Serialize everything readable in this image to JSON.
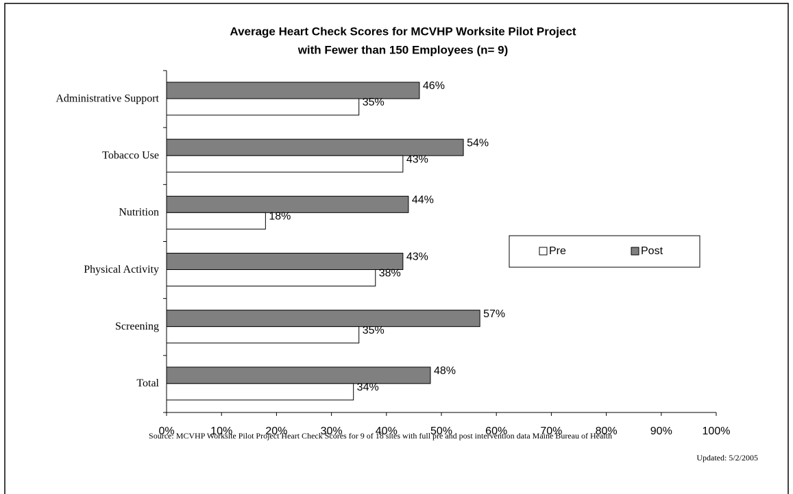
{
  "chart_data": {
    "type": "hbar",
    "title": "Average Heart Check Scores for MCVHP Worksite Pilot Project",
    "subtitle": "with Fewer than 150 Employees (n= 9)",
    "categories": [
      "Administrative Support",
      "Tobacco Use",
      "Nutrition",
      "Physical Activity",
      "Screening",
      "Total"
    ],
    "series": [
      {
        "name": "Pre",
        "color": "#ffffff",
        "values": [
          35,
          43,
          18,
          38,
          35,
          34
        ],
        "value_labels": [
          "35%",
          "43%",
          "18%",
          "38%",
          "35%",
          "34%"
        ]
      },
      {
        "name": "Post",
        "color": "#808080",
        "values": [
          46,
          54,
          44,
          43,
          57,
          48
        ],
        "value_labels": [
          "46%",
          "54%",
          "44%",
          "43%",
          "57%",
          "48%"
        ]
      }
    ],
    "xlim": [
      0,
      100
    ],
    "xticks": [
      {
        "value": 0,
        "label": "0%"
      },
      {
        "value": 10,
        "label": "10%"
      },
      {
        "value": 20,
        "label": "20%"
      },
      {
        "value": 30,
        "label": "30%"
      },
      {
        "value": 40,
        "label": "40%"
      },
      {
        "value": 50,
        "label": "50%"
      },
      {
        "value": 60,
        "label": "60%"
      },
      {
        "value": 70,
        "label": "70%"
      },
      {
        "value": 80,
        "label": "80%"
      },
      {
        "value": 90,
        "label": "90%"
      },
      {
        "value": 100,
        "label": "100%"
      }
    ],
    "legend": "right",
    "source": "Source: MCVHP Worksite Pilot Project  Heart Check Scores for 9 of 18 sites with full pre and post intervention data  Maine Bureau of Health",
    "updated": "Updated: 5/2/2005"
  }
}
